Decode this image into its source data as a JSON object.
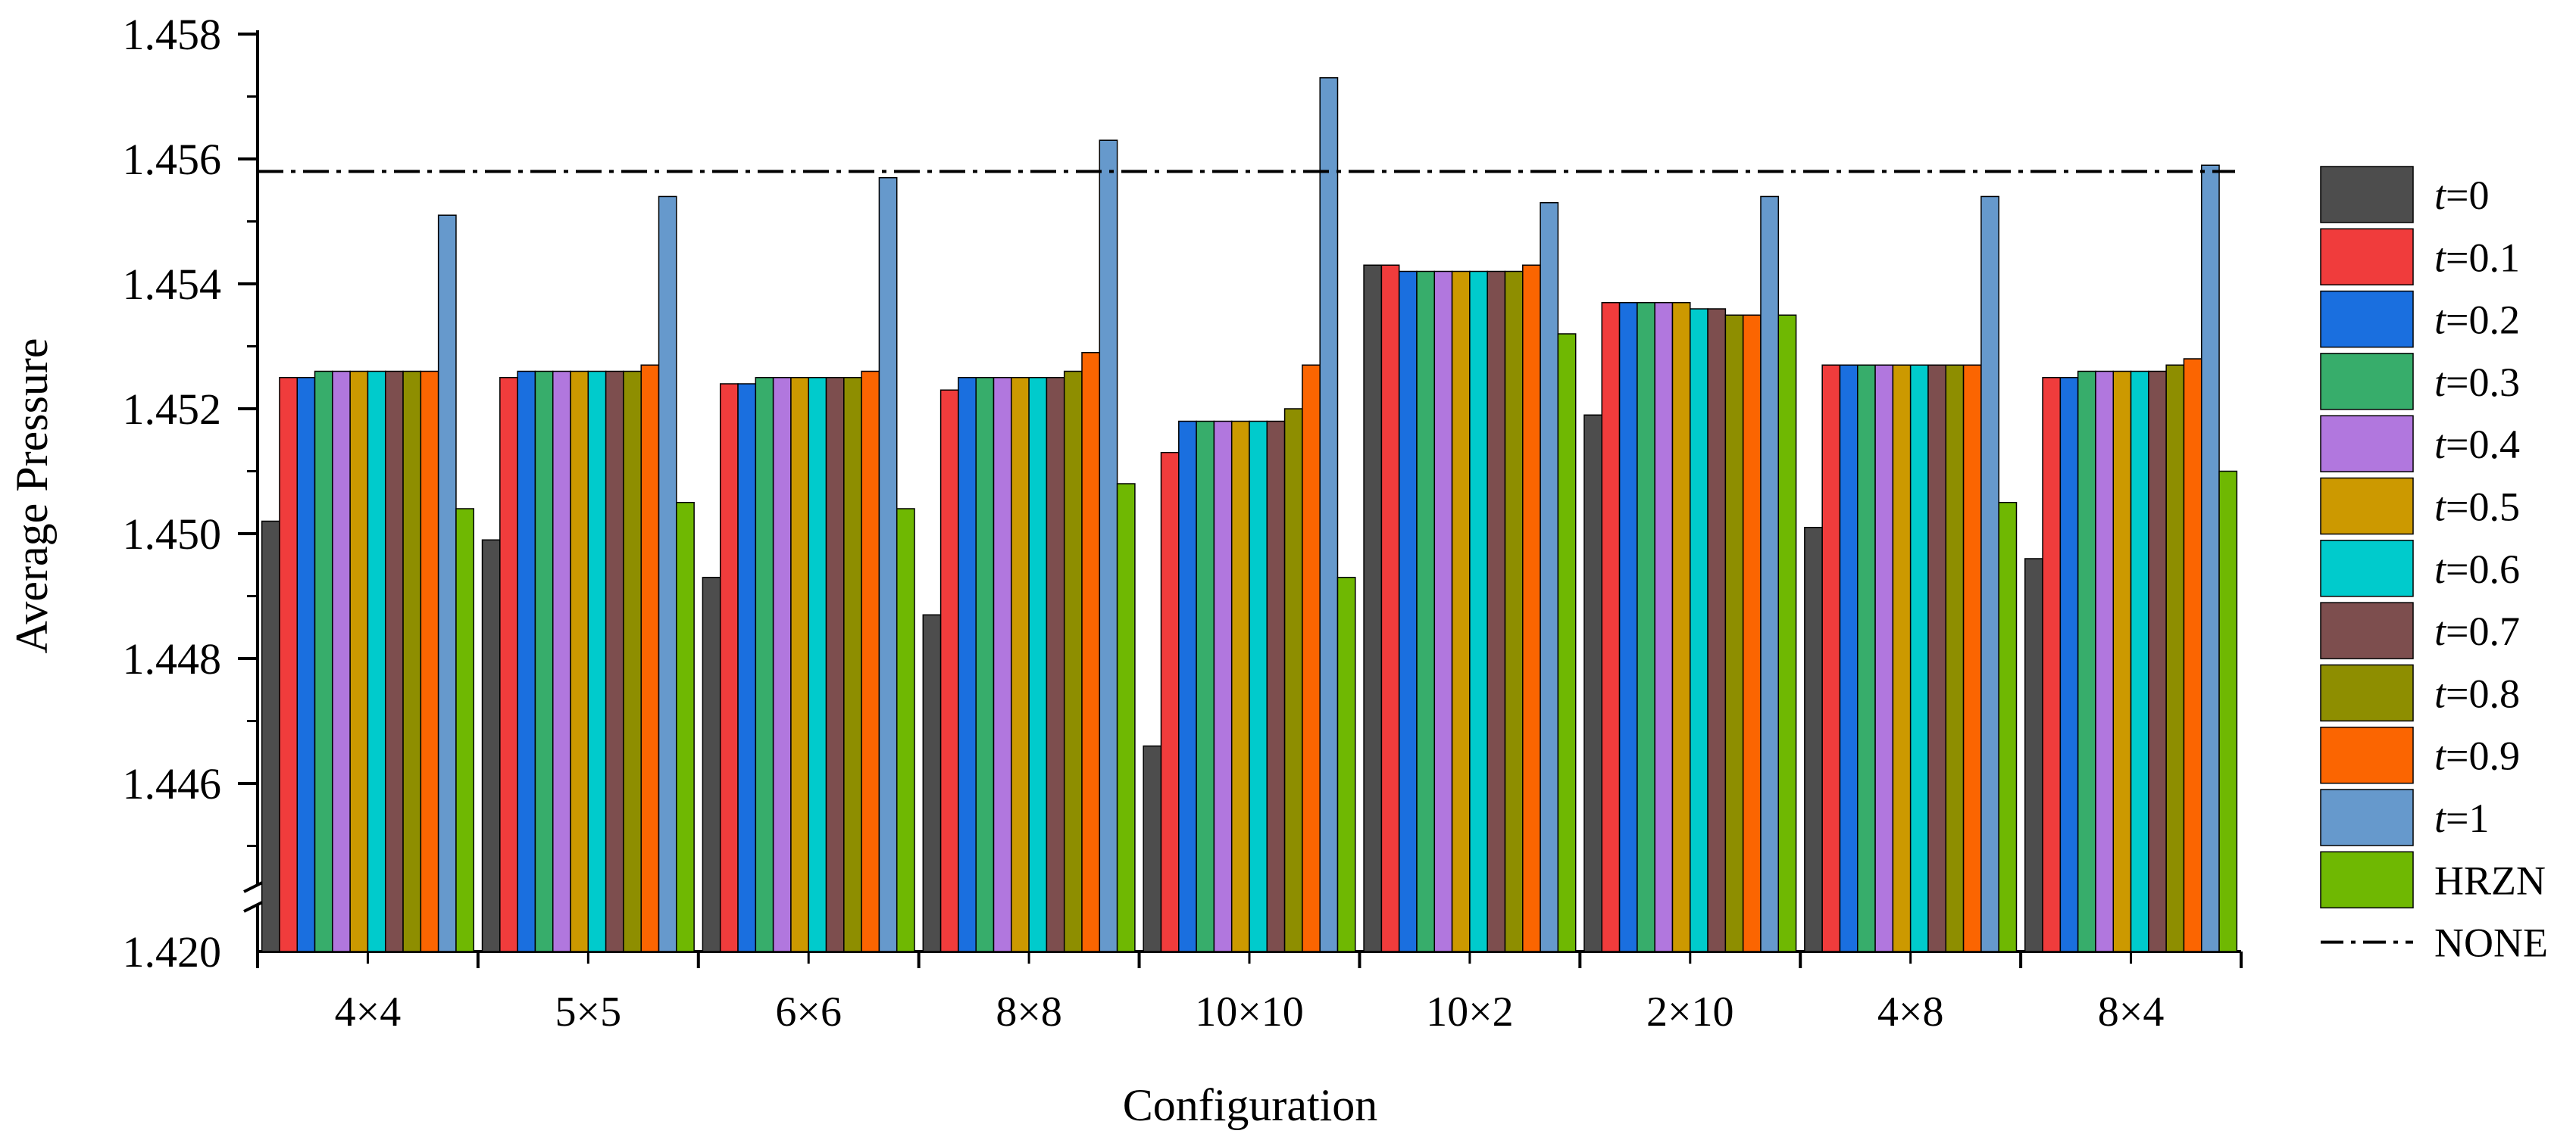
{
  "chart_data": {
    "type": "bar",
    "title": "",
    "xlabel": "Configuration",
    "ylabel": "Average Pressure",
    "ylim": [
      1.444,
      1.458
    ],
    "y_ticks": [
      "1.446",
      "1.448",
      "1.450",
      "1.452",
      "1.454",
      "1.456",
      "1.458"
    ],
    "y_broken_tick": "1.420",
    "grid": false,
    "legend_position": "right",
    "categories": [
      "4×4",
      "5×5",
      "6×6",
      "8×8",
      "10×10",
      "10×2",
      "2×10",
      "4×8",
      "8×4"
    ],
    "series": [
      {
        "name": "t=0",
        "prefix": "t",
        "suffix": "=0",
        "color": "#4d4d4d",
        "values": [
          1.4502,
          1.4499,
          1.4493,
          1.4487,
          1.4466,
          1.4543,
          1.4519,
          1.4501,
          1.4496
        ]
      },
      {
        "name": "t=0.1",
        "prefix": "t",
        "suffix": "=0.1",
        "color": "#f03c3c",
        "values": [
          1.4525,
          1.4525,
          1.4524,
          1.4523,
          1.4513,
          1.4543,
          1.4537,
          1.4527,
          1.4525
        ]
      },
      {
        "name": "t=0.2",
        "prefix": "t",
        "suffix": "=0.2",
        "color": "#1a6fdf",
        "values": [
          1.4525,
          1.4526,
          1.4524,
          1.4525,
          1.4518,
          1.4542,
          1.4537,
          1.4527,
          1.4525
        ]
      },
      {
        "name": "t=0.3",
        "prefix": "t",
        "suffix": "=0.3",
        "color": "#37ad6b",
        "values": [
          1.4526,
          1.4526,
          1.4525,
          1.4525,
          1.4518,
          1.4542,
          1.4537,
          1.4527,
          1.4526
        ]
      },
      {
        "name": "t=0.4",
        "prefix": "t",
        "suffix": "=0.4",
        "color": "#b177de",
        "values": [
          1.4526,
          1.4526,
          1.4525,
          1.4525,
          1.4518,
          1.4542,
          1.4537,
          1.4527,
          1.4526
        ]
      },
      {
        "name": "t=0.5",
        "prefix": "t",
        "suffix": "=0.5",
        "color": "#cc9900",
        "values": [
          1.4526,
          1.4526,
          1.4525,
          1.4525,
          1.4518,
          1.4542,
          1.4537,
          1.4527,
          1.4526
        ]
      },
      {
        "name": "t=0.6",
        "prefix": "t",
        "suffix": "=0.6",
        "color": "#00cbcc",
        "values": [
          1.4526,
          1.4526,
          1.4525,
          1.4525,
          1.4518,
          1.4542,
          1.4536,
          1.4527,
          1.4526
        ]
      },
      {
        "name": "t=0.7",
        "prefix": "t",
        "suffix": "=0.7",
        "color": "#7d4e4e",
        "values": [
          1.4526,
          1.4526,
          1.4525,
          1.4525,
          1.4518,
          1.4542,
          1.4536,
          1.4527,
          1.4526
        ]
      },
      {
        "name": "t=0.8",
        "prefix": "t",
        "suffix": "=0.8",
        "color": "#8e8e00",
        "values": [
          1.4526,
          1.4526,
          1.4525,
          1.4526,
          1.452,
          1.4542,
          1.4535,
          1.4527,
          1.4527
        ]
      },
      {
        "name": "t=0.9",
        "prefix": "t",
        "suffix": "=0.9",
        "color": "#fb6501",
        "values": [
          1.4526,
          1.4527,
          1.4526,
          1.4529,
          1.4527,
          1.4543,
          1.4535,
          1.4527,
          1.4528
        ]
      },
      {
        "name": "t=1",
        "prefix": "t",
        "suffix": "=1",
        "color": "#6699cc",
        "values": [
          1.4551,
          1.4554,
          1.4557,
          1.4563,
          1.4573,
          1.4553,
          1.4554,
          1.4554,
          1.4559
        ]
      },
      {
        "name": "HRZN",
        "prefix": "",
        "suffix": "HRZN",
        "color": "#6fb802",
        "values": [
          1.4504,
          1.4505,
          1.4504,
          1.4508,
          1.4493,
          1.4532,
          1.4535,
          1.4505,
          1.451
        ]
      }
    ],
    "reference_line": {
      "name": "NONE",
      "value": 1.4558
    }
  }
}
